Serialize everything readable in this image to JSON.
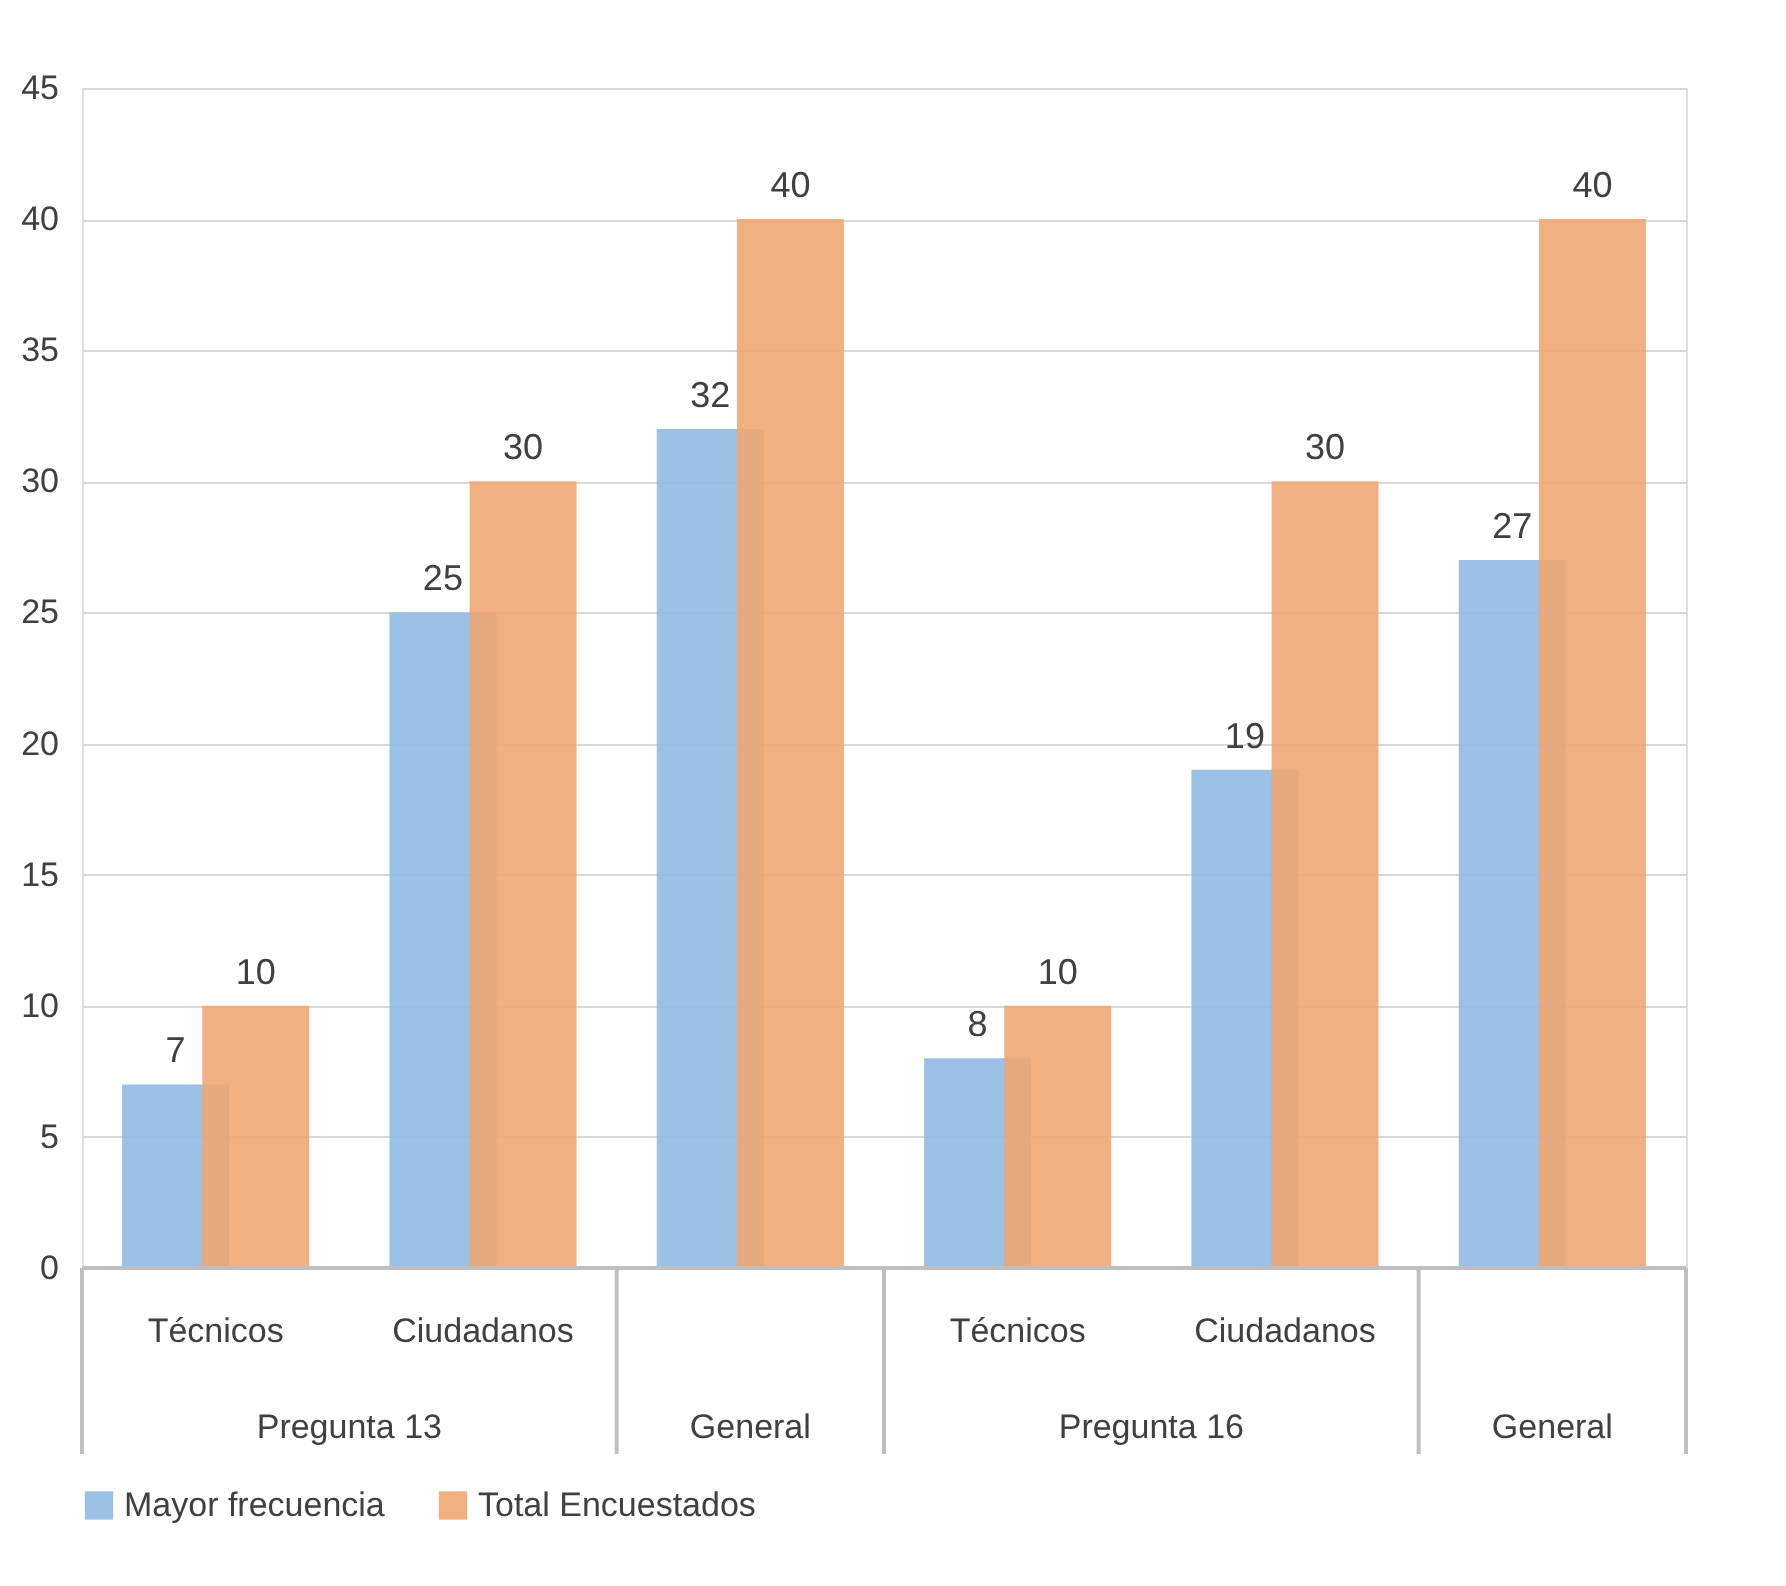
{
  "chart_data": {
    "type": "bar",
    "categories": [
      "Técnicos",
      "Ciudadanos",
      null,
      "Técnicos",
      "Ciudadanos",
      null
    ],
    "series": [
      {
        "name": "Mayor frecuencia",
        "color": "#8db8e2",
        "values": [
          7,
          25,
          32,
          8,
          19,
          27
        ]
      },
      {
        "name": "Total Encuestados",
        "color": "#f0a46e",
        "values": [
          10,
          30,
          40,
          10,
          30,
          40
        ]
      }
    ],
    "annotations": [
      "Pregunta 13",
      "General",
      "Pregunta 16",
      "General"
    ],
    "ylim": [
      0,
      45
    ],
    "yticks": [
      0,
      5,
      10,
      15,
      20,
      25,
      30,
      35,
      40,
      45
    ],
    "grid": "y",
    "legend": "bottom",
    "data_labels": true
  }
}
